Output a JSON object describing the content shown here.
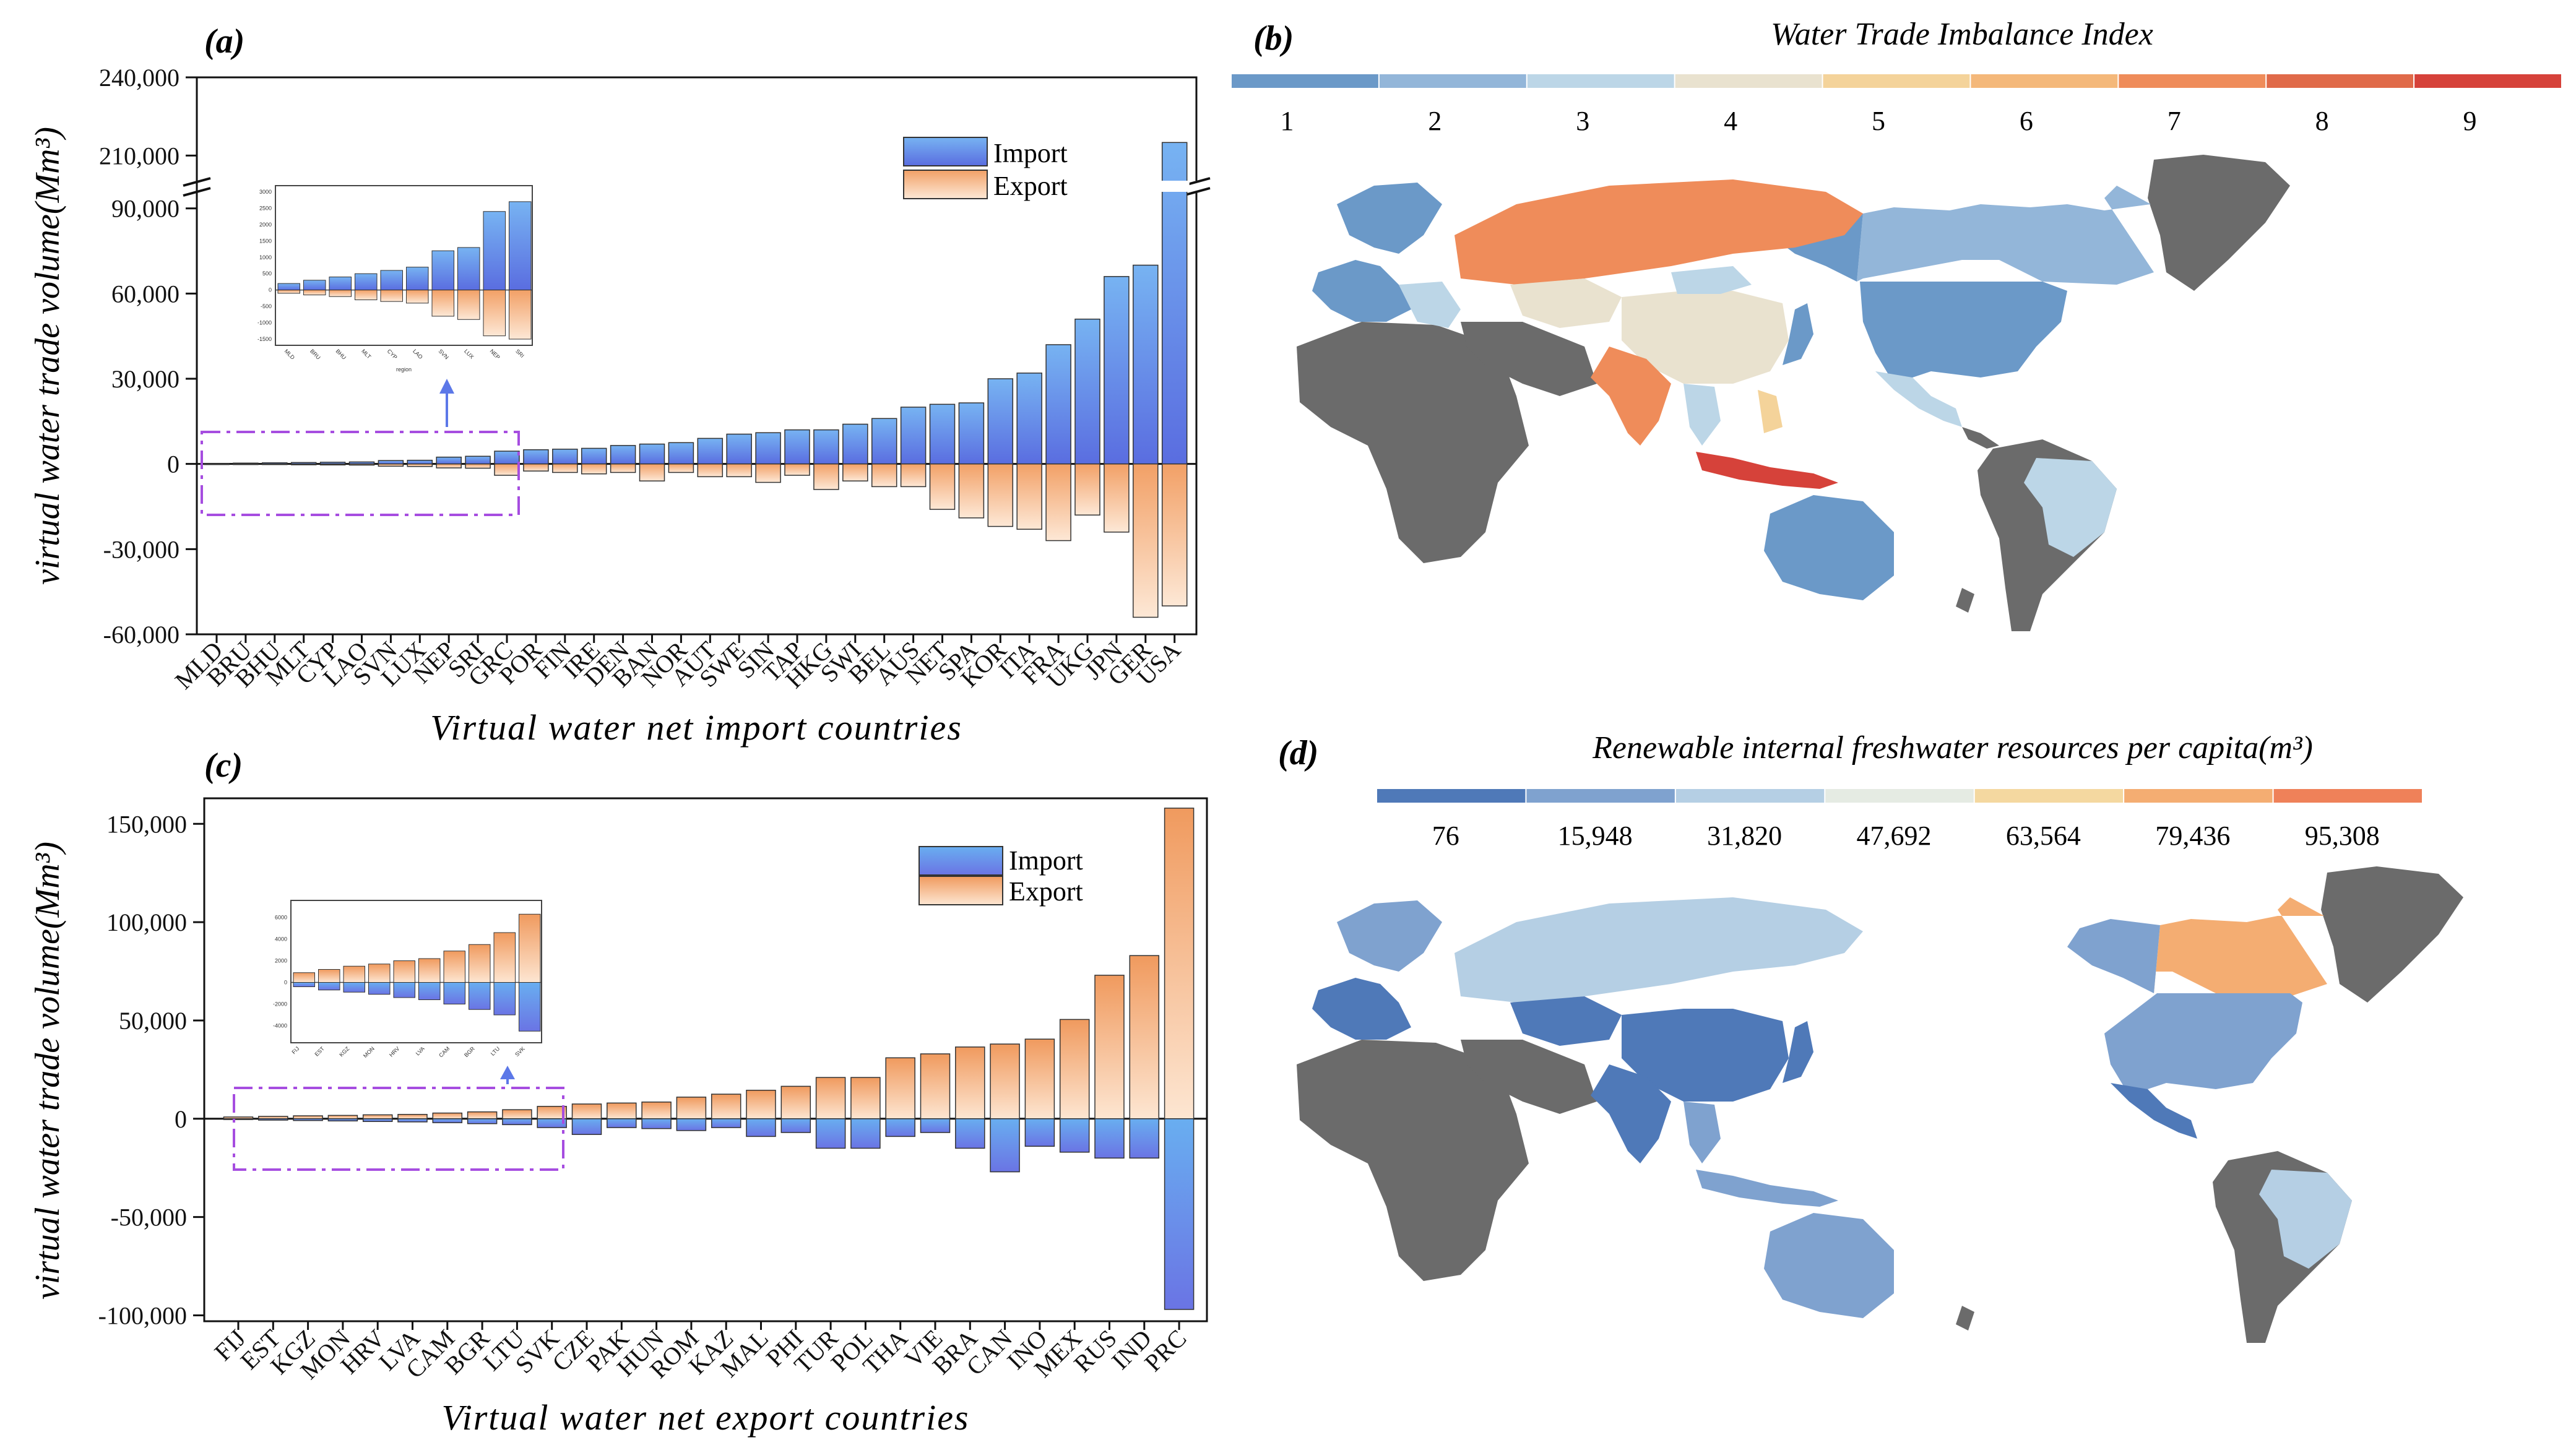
{
  "figure": {
    "panel_labels": [
      "(a)",
      "(b)",
      "(c)",
      "(d)"
    ]
  },
  "colors": {
    "import_top": "#6aa7ee",
    "import_bottom": "#5d6ee2",
    "export_top": "#f3a36b",
    "export_bottom": "#fde6d3",
    "land_gray": "#6b6b6b",
    "dashed_box": "#a64de0",
    "arrow": "#5c78e8"
  },
  "chart_data": [
    {
      "panel": "(a)",
      "type": "bar",
      "title": "",
      "xlabel": "Virtual water net import countries",
      "ylabel": "virtual water trade volume(Mm³)",
      "axis_break": {
        "lower": 98000,
        "upper": 202000
      },
      "ylim": [
        -60000,
        240000
      ],
      "yticks": [
        -60000,
        -30000,
        0,
        30000,
        60000,
        90000,
        210000,
        240000
      ],
      "ytick_labels": [
        "-60,000",
        "-30,000",
        "0",
        "30,000",
        "60,000",
        "90,000",
        "210,000",
        "240,000"
      ],
      "legend": [
        "Import",
        "Export"
      ],
      "categories": [
        "MLD",
        "BRU",
        "BHU",
        "MLT",
        "CYP",
        "LAO",
        "SVN",
        "LUX",
        "NEP",
        "SRI",
        "GRC",
        "POR",
        "FIN",
        "IRE",
        "DEN",
        "BAN",
        "NOR",
        "AUT",
        "SWE",
        "SIN",
        "TAP",
        "HKG",
        "SWI",
        "BEL",
        "AUS",
        "NET",
        "SPA",
        "KOR",
        "ITA",
        "FRA",
        "UKG",
        "JPN",
        "GER",
        "USA"
      ],
      "series": [
        {
          "name": "Import",
          "values": [
            200,
            300,
            400,
            500,
            600,
            700,
            1200,
            1300,
            2400,
            2700,
            4500,
            5000,
            5200,
            5500,
            6500,
            7000,
            7500,
            9000,
            10500,
            11000,
            12000,
            12000,
            14000,
            16000,
            20000,
            21000,
            21500,
            30000,
            32000,
            42000,
            51000,
            66000,
            70000,
            215000
          ]
        },
        {
          "name": "Export",
          "values": [
            -100,
            -150,
            -200,
            -300,
            -350,
            -400,
            -800,
            -900,
            -1400,
            -1500,
            -4000,
            -2500,
            -3000,
            -3500,
            -3000,
            -6000,
            -3000,
            -4500,
            -4500,
            -6500,
            -4000,
            -9000,
            -6000,
            -8000,
            -8000,
            -16000,
            -19000,
            -22000,
            -23000,
            -27000,
            -18000,
            -24000,
            -54000,
            -50000
          ]
        }
      ],
      "inset": {
        "xlabel": "region",
        "yticks": [
          "3000",
          "2500",
          "2000",
          "1500",
          "1000",
          "500",
          "0",
          "-500",
          "-1000",
          "-1500"
        ],
        "categories": [
          "MLD",
          "BRU",
          "BHU",
          "MLT",
          "CYP",
          "LAO",
          "SVN",
          "LUX",
          "NEP",
          "SRI"
        ],
        "import": [
          200,
          300,
          400,
          500,
          600,
          700,
          1200,
          1300,
          2400,
          2700
        ],
        "export": [
          -100,
          -150,
          -200,
          -300,
          -350,
          -400,
          -800,
          -900,
          -1400,
          -1500
        ]
      }
    },
    {
      "panel": "(c)",
      "type": "bar",
      "title": "",
      "xlabel": "Virtual water net export countries",
      "ylabel": "virtual water trade volume(Mm³)",
      "ylim": [
        -103000,
        163000
      ],
      "yticks": [
        -100000,
        -50000,
        0,
        50000,
        100000,
        150000
      ],
      "ytick_labels": [
        "-100,000",
        "-50,000",
        "0",
        "50,000",
        "100,000",
        "150,000"
      ],
      "legend": [
        "Import",
        "Export"
      ],
      "categories": [
        "FIJ",
        "EST",
        "KGZ",
        "MON",
        "HRV",
        "LVA",
        "CAM",
        "BGR",
        "LTU",
        "SVK",
        "CZE",
        "PAK",
        "HUN",
        "ROM",
        "KAZ",
        "MAL",
        "PHI",
        "TUR",
        "POL",
        "THA",
        "VIE",
        "BRA",
        "CAN",
        "INO",
        "MEX",
        "RUS",
        "IND",
        "PRC"
      ],
      "series": [
        {
          "name": "Import",
          "values": [
            -400,
            -700,
            -900,
            -1100,
            -1400,
            -1600,
            -2000,
            -2500,
            -3000,
            -4500,
            -8000,
            -4500,
            -5000,
            -6000,
            -4500,
            -9000,
            -7000,
            -15000,
            -15000,
            -9000,
            -7000,
            -15000,
            -27000,
            -14000,
            -17000,
            -20000,
            -20000,
            -97000
          ]
        },
        {
          "name": "Export",
          "values": [
            900,
            1200,
            1500,
            1700,
            2000,
            2200,
            2900,
            3500,
            4600,
            6300,
            7500,
            8000,
            8500,
            11000,
            12500,
            14500,
            16500,
            21000,
            21000,
            31000,
            33000,
            36500,
            38000,
            40500,
            50500,
            73000,
            83000,
            158000
          ]
        }
      ],
      "inset": {
        "categories": [
          "FIJ",
          "EST",
          "KGZ",
          "MON",
          "HRV",
          "LVA",
          "CAM",
          "BGR",
          "LTU",
          "SVK"
        ],
        "yticks": [
          "6000",
          "4000",
          "2000",
          "0",
          "-2000",
          "-4000"
        ],
        "import": [
          -400,
          -700,
          -900,
          -1100,
          -1400,
          -1600,
          -2000,
          -2500,
          -3000,
          -4500
        ],
        "export": [
          900,
          1200,
          1500,
          1700,
          2000,
          2200,
          2900,
          3500,
          4600,
          6300
        ]
      }
    }
  ],
  "maps": {
    "b": {
      "title": "Water Trade Imbalance Index",
      "scale_labels": [
        "1",
        "2",
        "3",
        "4",
        "5",
        "6",
        "7",
        "8",
        "9"
      ],
      "scale_colors": [
        "#6b99c8",
        "#93b6d9",
        "#bcd6e7",
        "#e9e2cf",
        "#f4d39a",
        "#f4b87a",
        "#ef8c5a",
        "#e06a49",
        "#d6423a"
      ]
    },
    "d": {
      "title": "Renewable internal freshwater resources per capita(m³)",
      "scale_labels": [
        "76",
        "15,948",
        "31,820",
        "47,692",
        "63,564",
        "79,436",
        "95,308"
      ],
      "scale_colors": [
        "#4f79b8",
        "#7fa2cf",
        "#b5cfe4",
        "#e5ebe3",
        "#f4d8a0",
        "#f4ad72",
        "#ef8159"
      ]
    }
  }
}
